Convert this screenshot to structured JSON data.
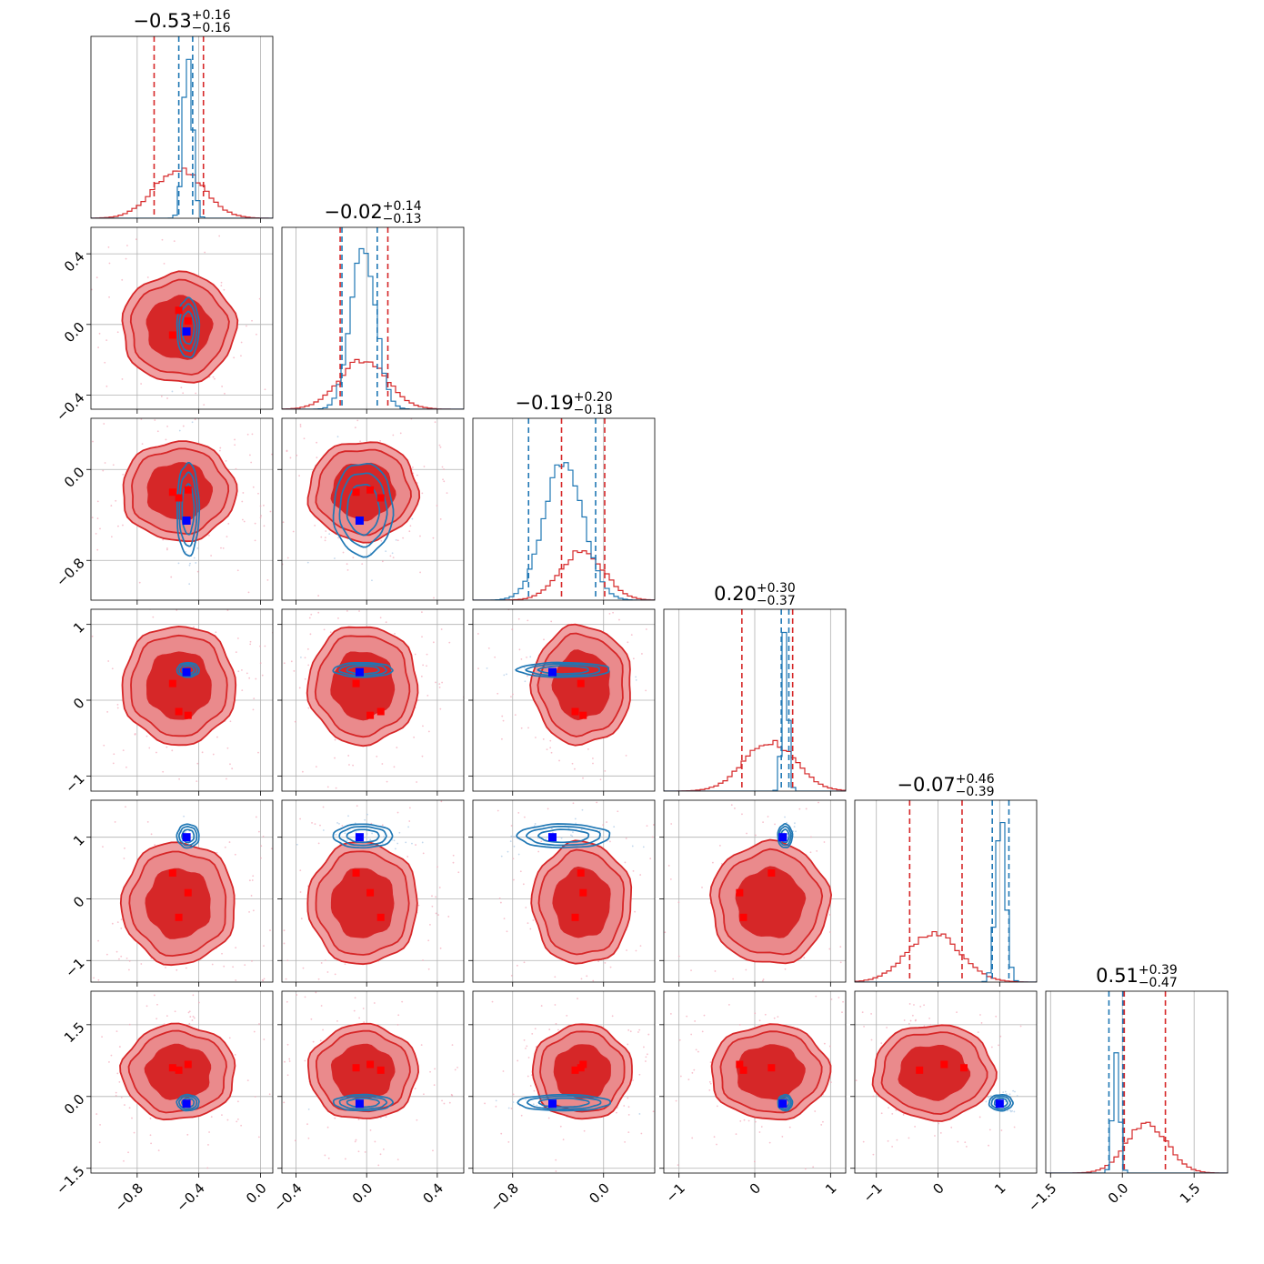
{
  "chart_data": {
    "type": "corner",
    "colors": {
      "red": "#d62728",
      "blue": "#1f77b4",
      "red_fill_dark": "#d62728",
      "red_fill_light": "#f0a0a2",
      "grid": "#b0b0b0"
    },
    "n_params": 6,
    "titles": [
      {
        "median": "−0.53",
        "plus": "+0.16",
        "minus": "−0.16"
      },
      {
        "median": "−0.02",
        "plus": "+0.14",
        "minus": "−0.13"
      },
      {
        "median": "−0.19",
        "plus": "+0.20",
        "minus": "−0.18"
      },
      {
        "median": "0.20",
        "plus": "+0.30",
        "minus": "−0.37"
      },
      {
        "median": "−0.07",
        "plus": "+0.46",
        "minus": "−0.39"
      },
      {
        "median": "0.51",
        "plus": "+0.39",
        "minus": "−0.47"
      }
    ],
    "ranges": [
      [
        -1.1,
        0.08
      ],
      [
        -0.48,
        0.55
      ],
      [
        -1.15,
        0.45
      ],
      [
        -1.2,
        1.2
      ],
      [
        -1.35,
        1.6
      ],
      [
        -1.6,
        2.2
      ]
    ],
    "ticks": [
      {
        "values": [
          -0.8,
          -0.4,
          0.0
        ],
        "labels": [
          "−0.8",
          "−0.4",
          "0.0"
        ]
      },
      {
        "values": [
          -0.4,
          0.0,
          0.4
        ],
        "labels": [
          "−0.4",
          "0.0",
          "0.4"
        ]
      },
      {
        "values": [
          -0.8,
          0.0
        ],
        "labels": [
          "−0.8",
          "0.0"
        ]
      },
      {
        "values": [
          -1,
          0,
          1
        ],
        "labels": [
          "−1",
          "0",
          "1"
        ]
      },
      {
        "values": [
          -1,
          0,
          1
        ],
        "labels": [
          "−1",
          "0",
          "1"
        ]
      },
      {
        "values": [
          -1.5,
          0.0,
          1.5
        ],
        "labels": [
          "−1.5",
          "0.0",
          "1.5"
        ]
      }
    ],
    "red_posterior": {
      "mean": [
        -0.53,
        -0.02,
        -0.19,
        0.2,
        -0.07,
        0.51
      ],
      "sd": [
        0.16,
        0.135,
        0.19,
        0.34,
        0.43,
        0.43
      ],
      "quantile_lines": [
        [
          -0.69,
          -0.37
        ],
        [
          -0.15,
          0.12
        ],
        [
          -0.37,
          0.01
        ],
        [
          -0.17,
          0.5
        ],
        [
          -0.46,
          0.39
        ],
        [
          0.04,
          0.9
        ]
      ]
    },
    "blue_posterior": {
      "mean": [
        -0.47,
        -0.02,
        -0.35,
        0.4,
        1.02,
        -0.13
      ],
      "sd": [
        0.03,
        0.07,
        0.17,
        0.04,
        0.08,
        0.07
      ],
      "quantile_lines": [
        [
          -0.53,
          -0.44
        ],
        [
          -0.14,
          0.06
        ],
        [
          -0.66,
          -0.07
        ],
        [
          0.35,
          0.45
        ],
        [
          0.88,
          1.15
        ],
        [
          -0.28,
          0.01
        ]
      ]
    },
    "true_points_blue": [
      -0.48,
      -0.04,
      -0.45,
      0.37,
      1.0,
      -0.15
    ],
    "true_points_red": [
      [
        -0.53,
        0.08,
        -0.25,
        -0.15,
        -0.3,
        0.55
      ],
      [
        -0.57,
        -0.06,
        -0.2,
        0.22,
        0.42,
        0.6
      ],
      [
        -0.47,
        0.02,
        -0.18,
        -0.2,
        0.1,
        0.67
      ]
    ]
  }
}
